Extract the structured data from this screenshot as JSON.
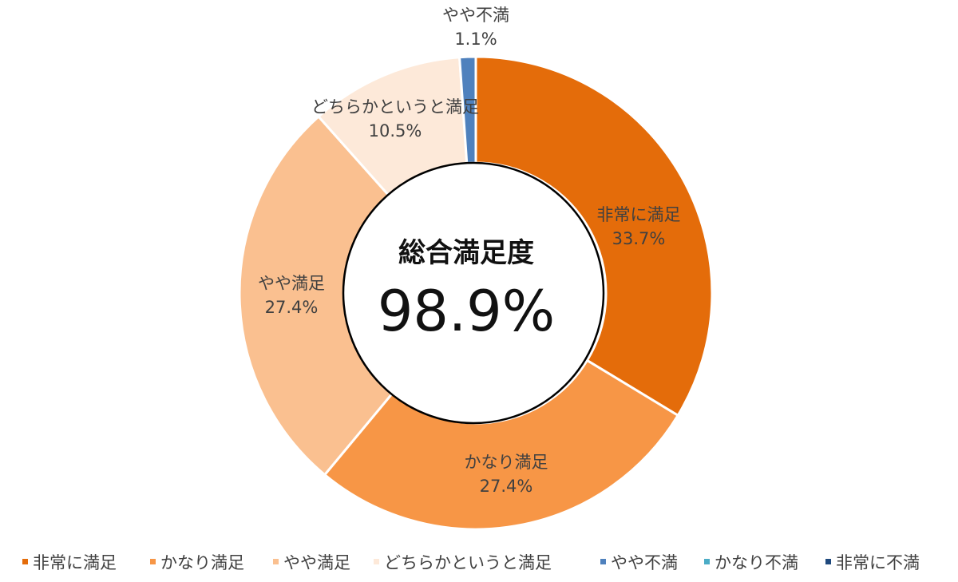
{
  "chart_data": {
    "type": "pie",
    "center": {
      "title": "総合満足度",
      "value": "98.9%"
    },
    "slices": [
      {
        "label": "非常に満足",
        "value": 33.7,
        "value_label": "33.7%",
        "color": "#E46C0A"
      },
      {
        "label": "かなり満足",
        "value": 27.4,
        "value_label": "27.4%",
        "color": "#F79646"
      },
      {
        "label": "やや満足",
        "value": 27.4,
        "value_label": "27.4%",
        "color": "#FAC090"
      },
      {
        "label": "どちらかというと満足",
        "value": 10.5,
        "value_label": "10.5%",
        "color": "#FDE9D9"
      },
      {
        "label": "やや不満",
        "value": 1.1,
        "value_label": "1.1%",
        "color": "#4F81BD"
      },
      {
        "label": "かなり不満",
        "value": 0,
        "value_label": "",
        "color": "#4BACC6"
      },
      {
        "label": "非常に不満",
        "value": 0,
        "value_label": "",
        "color": "#1F497D"
      }
    ],
    "legend": {
      "placement": "bottom",
      "entries": [
        "非常に満足",
        "かなり満足",
        "やや満足",
        "どちらかというと満足",
        "やや不満",
        "かなり不満",
        "非常に不満"
      ]
    }
  }
}
